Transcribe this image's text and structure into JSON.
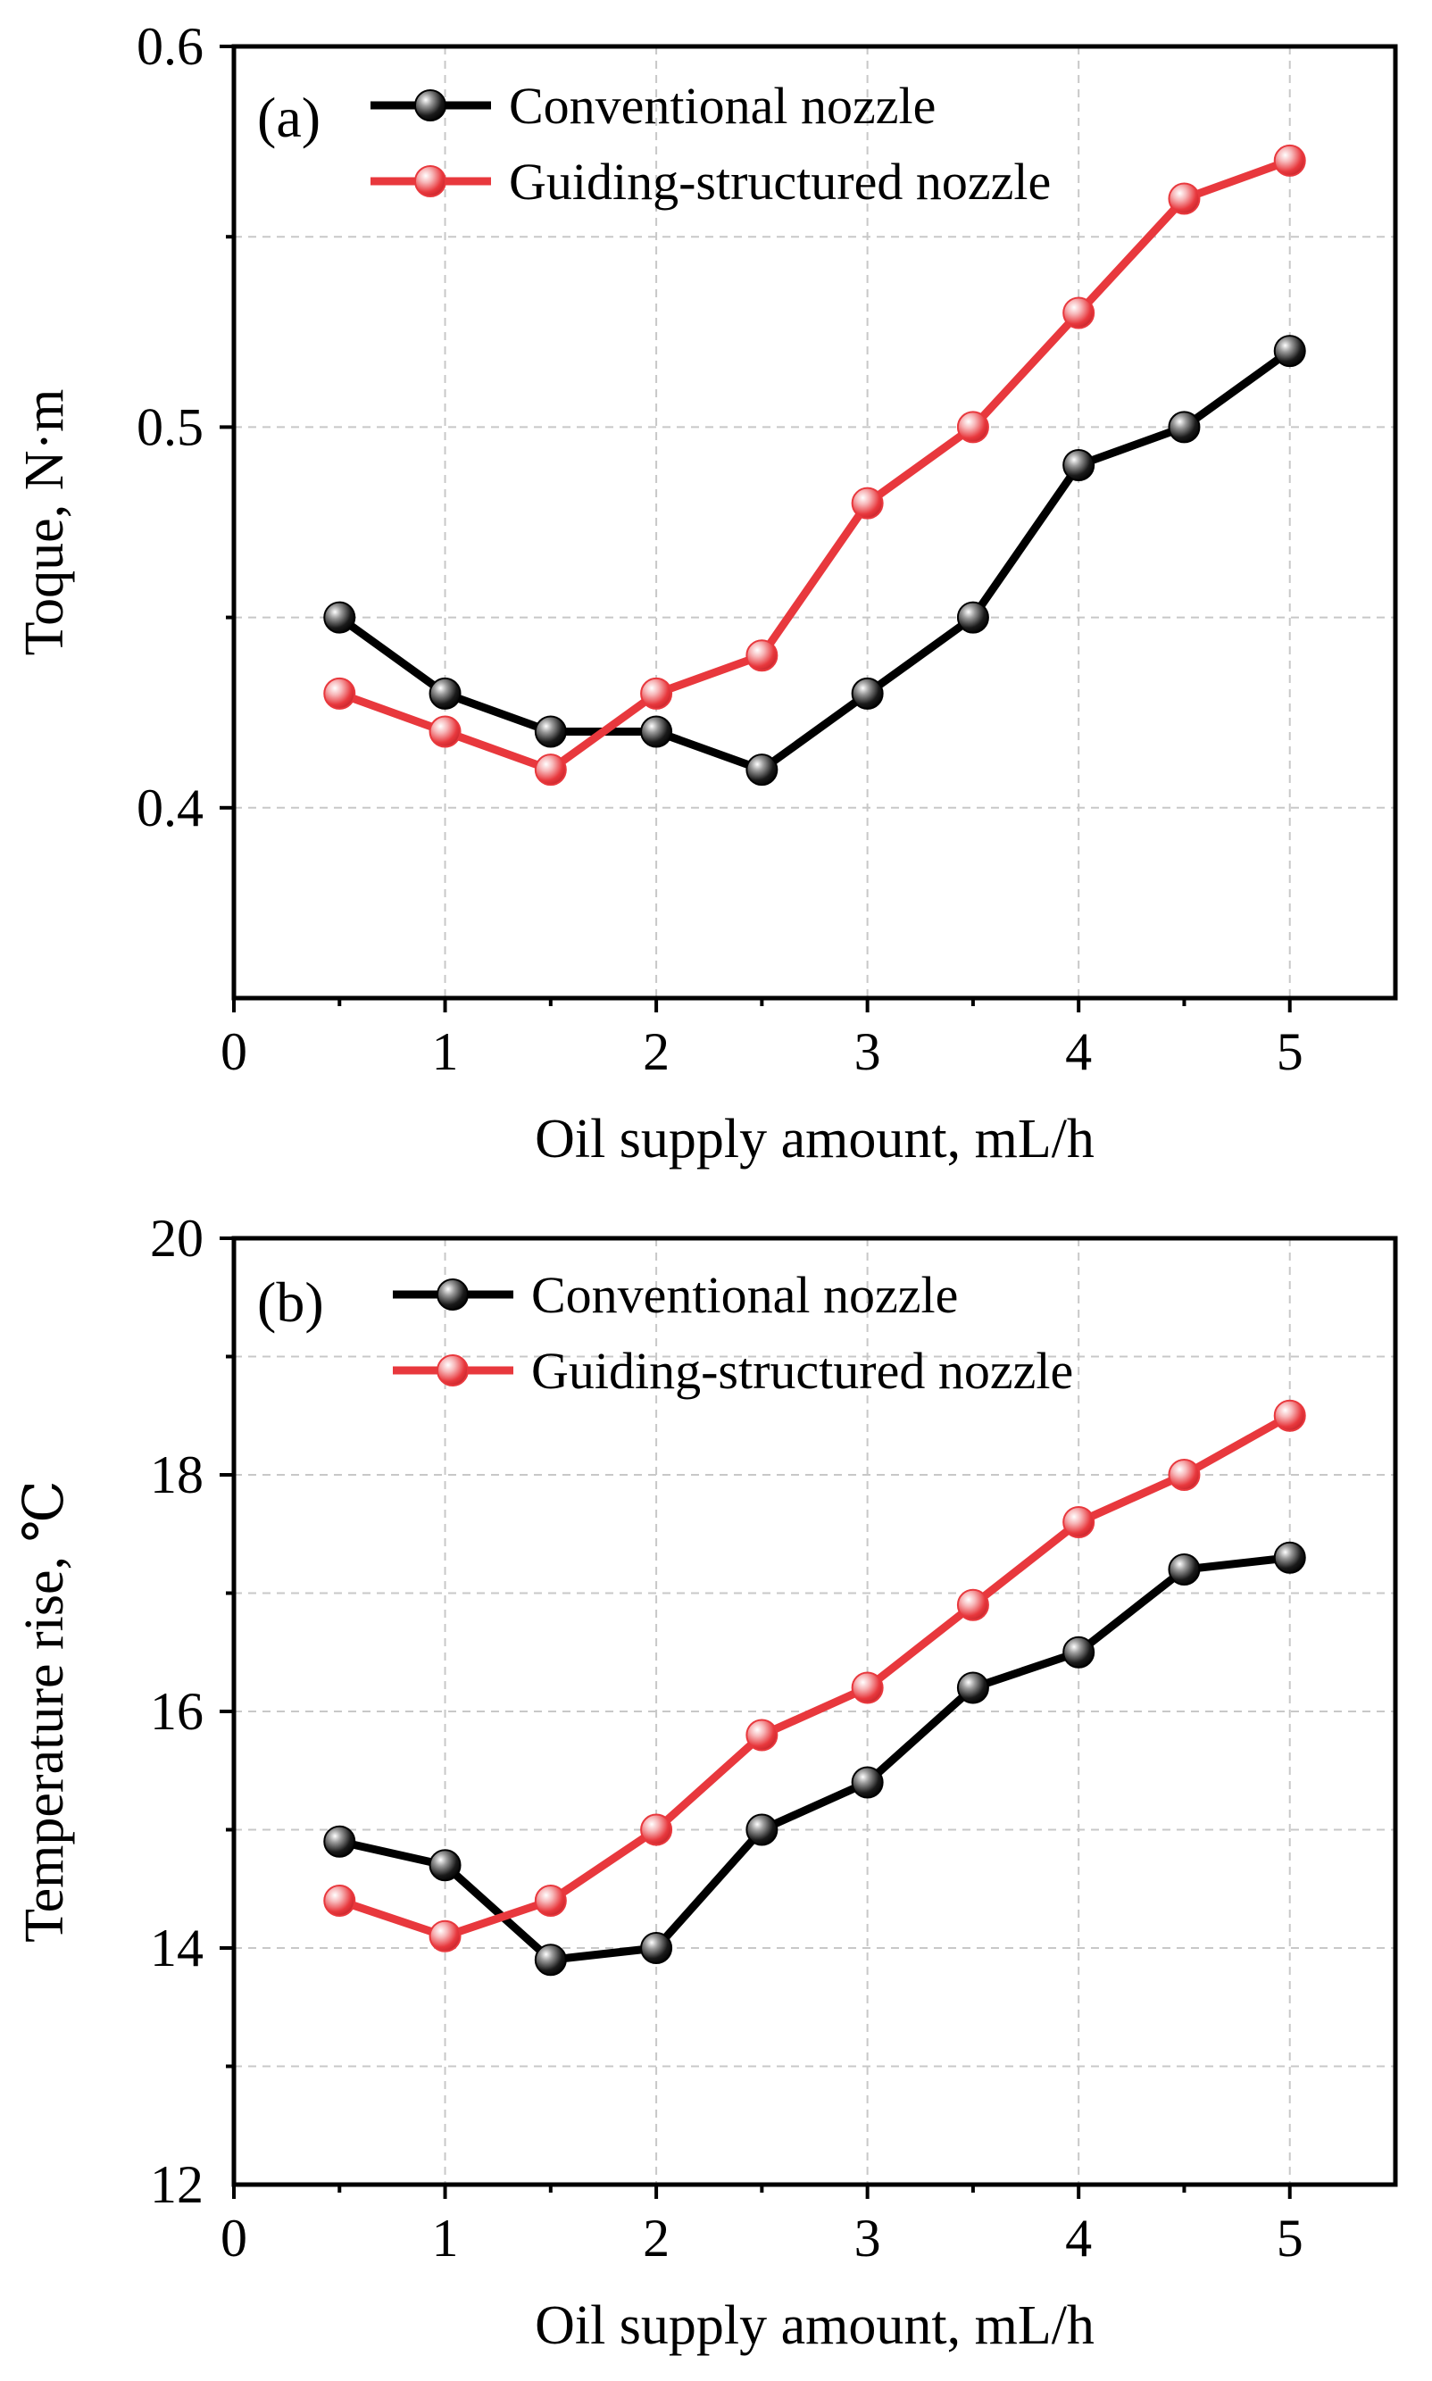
{
  "chart_data": [
    {
      "type": "line",
      "panel_label": "(a)",
      "title": "",
      "xlabel": "Oil supply amount, mL/h",
      "ylabel": "Toque, N·m",
      "xlim": [
        0,
        5.5
      ],
      "ylim": [
        0.35,
        0.6
      ],
      "xticks": [
        0,
        1,
        2,
        3,
        4,
        5
      ],
      "xtick_labels": [
        "0",
        "1",
        "2",
        "3",
        "4",
        "5"
      ],
      "yticks": [
        0.4,
        0.5,
        0.6
      ],
      "ytick_labels": [
        "0.4",
        "0.5",
        "0.6"
      ],
      "ygrid": [
        0.4,
        0.45,
        0.5,
        0.55,
        0.6
      ],
      "grid": true,
      "legend_position": "top-left",
      "x": [
        0.5,
        1,
        1.5,
        2,
        2.5,
        3,
        3.5,
        4,
        4.5,
        5
      ],
      "series": [
        {
          "name": "Conventional nozzle",
          "color": "#000000",
          "values": [
            0.45,
            0.43,
            0.42,
            0.42,
            0.41,
            0.43,
            0.45,
            0.49,
            0.5,
            0.52
          ]
        },
        {
          "name": "Guiding-structured nozzle",
          "color": "#e8383d",
          "values": [
            0.43,
            0.42,
            0.41,
            0.43,
            0.44,
            0.48,
            0.5,
            0.53,
            0.56,
            0.57
          ]
        }
      ]
    },
    {
      "type": "line",
      "panel_label": "(b)",
      "title": "",
      "xlabel": "Oil supply amount, mL/h",
      "ylabel": "Temperature rise,  ℃",
      "xlim": [
        0,
        5.5
      ],
      "ylim": [
        12,
        20
      ],
      "xticks": [
        0,
        1,
        2,
        3,
        4,
        5
      ],
      "xtick_labels": [
        "0",
        "1",
        "2",
        "3",
        "4",
        "5"
      ],
      "yticks": [
        12,
        14,
        16,
        18,
        20
      ],
      "ytick_labels": [
        "12",
        "14",
        "16",
        "18",
        "20"
      ],
      "ygrid": [
        13,
        14,
        15,
        16,
        17,
        18,
        19,
        20
      ],
      "grid": true,
      "legend_position": "top-left",
      "x": [
        0.5,
        1,
        1.5,
        2,
        2.5,
        3,
        3.5,
        4,
        4.5,
        5
      ],
      "series": [
        {
          "name": "Conventional nozzle",
          "color": "#000000",
          "values": [
            14.9,
            14.7,
            13.9,
            14.0,
            15.0,
            15.4,
            16.2,
            16.5,
            17.2,
            17.3
          ]
        },
        {
          "name": "Guiding-structured nozzle",
          "color": "#e8383d",
          "values": [
            14.4,
            14.1,
            14.4,
            15.0,
            15.8,
            16.2,
            16.9,
            17.6,
            18.0,
            18.5
          ]
        }
      ]
    }
  ]
}
